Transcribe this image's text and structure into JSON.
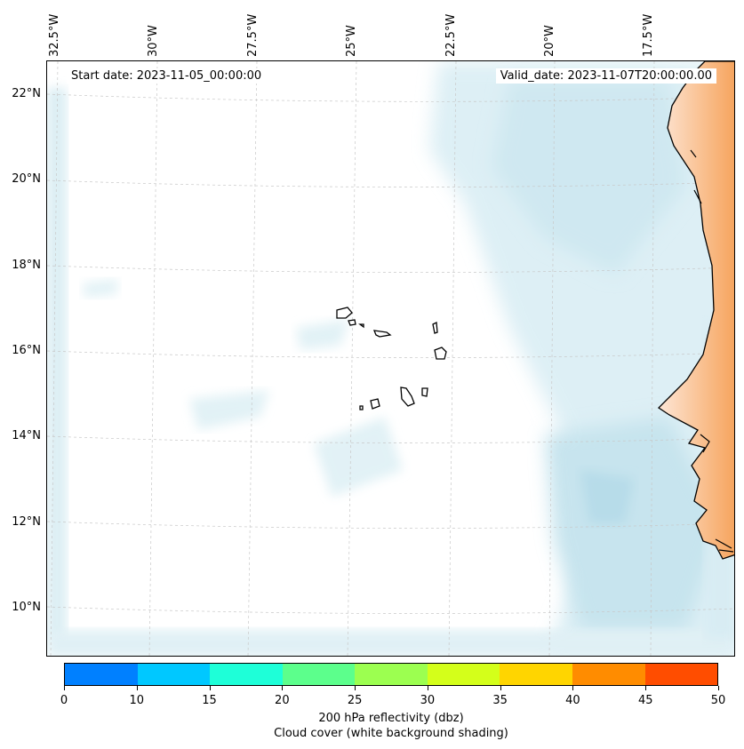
{
  "map": {
    "start_date": "Start date: 2023-11-05_00:00:00",
    "valid_date": "Valid_date: 2023-11-07T20:00:00.00",
    "lon_ticks": [
      "32.5°W",
      "30°W",
      "27.5°W",
      "25°W",
      "22.5°W",
      "20°W",
      "17.5°W"
    ],
    "lat_ticks": [
      "22°N",
      "20°N",
      "18°N",
      "16°N",
      "14°N",
      "12°N",
      "10°N"
    ],
    "land_color": "#f6a35c",
    "cloud_color": "#a9d6e5",
    "islands": "Cape Verde islands"
  },
  "colorbar": {
    "ticks": [
      "0",
      "10",
      "15",
      "20",
      "25",
      "30",
      "35",
      "40",
      "45",
      "50"
    ],
    "colors": [
      "#0080ff",
      "#00c8ff",
      "#1effd8",
      "#5cff8c",
      "#9cff50",
      "#d4ff1a",
      "#ffd500",
      "#ff8c00",
      "#ff4d00"
    ],
    "label_line1": "200 hPa reflectivity (dbz)",
    "label_line2": "Cloud cover (white background shading)"
  }
}
